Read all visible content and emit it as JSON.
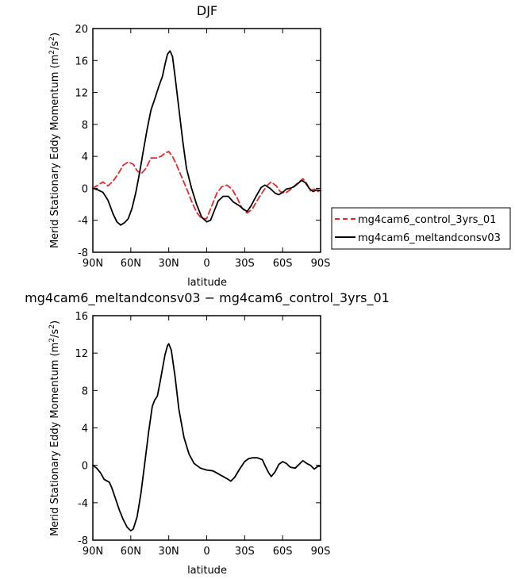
{
  "chart_data": [
    {
      "type": "line",
      "title": "DJF",
      "xlabel": "latitude",
      "ylabel": "Merid Stationary Eddy Momentum (m²/s²)",
      "ylabel_main": "Merid Stationary Eddy Momentum (m",
      "ylabel_sup": "2",
      "ylabel_mid": "/s",
      "ylabel_sup2": "2",
      "ylabel_end": ")",
      "x_ticks": [
        90,
        60,
        30,
        0,
        -30,
        -60,
        -90
      ],
      "x_tick_labels": [
        "90N",
        "60N",
        "30N",
        "0",
        "30S",
        "60S",
        "90S"
      ],
      "xlim": [
        90,
        -90
      ],
      "ylim": [
        -8,
        20
      ],
      "y_ticks": [
        -8,
        -4,
        0,
        4,
        8,
        12,
        16,
        20
      ],
      "legend_position": "right",
      "series": [
        {
          "name": "mg4cam6_control_3yrs_01",
          "color": "#e8272a",
          "dash": "dashed",
          "points": [
            [
              90,
              0
            ],
            [
              86,
              0.4
            ],
            [
              82,
              0.8
            ],
            [
              78,
              0.3
            ],
            [
              74,
              0.9
            ],
            [
              70,
              1.8
            ],
            [
              66,
              2.9
            ],
            [
              62,
              3.3
            ],
            [
              58,
              3.0
            ],
            [
              55,
              2.2
            ],
            [
              52,
              1.8
            ],
            [
              48,
              2.5
            ],
            [
              44,
              3.8
            ],
            [
              40,
              3.8
            ],
            [
              36,
              4.0
            ],
            [
              33,
              4.4
            ],
            [
              30,
              4.6
            ],
            [
              27,
              4.0
            ],
            [
              24,
              3.0
            ],
            [
              20,
              1.5
            ],
            [
              16,
              0
            ],
            [
              12,
              -1.6
            ],
            [
              8,
              -3.0
            ],
            [
              4,
              -3.8
            ],
            [
              0,
              -3.8
            ],
            [
              -4,
              -2.2
            ],
            [
              -8,
              -0.6
            ],
            [
              -12,
              0.2
            ],
            [
              -16,
              0.4
            ],
            [
              -20,
              -0.1
            ],
            [
              -24,
              -1.2
            ],
            [
              -28,
              -2.5
            ],
            [
              -32,
              -3.1
            ],
            [
              -36,
              -2.6
            ],
            [
              -40,
              -1.5
            ],
            [
              -44,
              -0.5
            ],
            [
              -48,
              0.4
            ],
            [
              -51,
              0.8
            ],
            [
              -55,
              0.3
            ],
            [
              -58,
              -0.4
            ],
            [
              -62,
              -0.6
            ],
            [
              -66,
              -0.2
            ],
            [
              -70,
              0.4
            ],
            [
              -73,
              0.8
            ],
            [
              -76,
              1.2
            ],
            [
              -79,
              0.6
            ],
            [
              -82,
              -0.3
            ],
            [
              -85,
              -0.1
            ],
            [
              -88,
              -0.4
            ],
            [
              -90,
              -0.2
            ]
          ]
        },
        {
          "name": "mg4cam6_meltandconsv03",
          "color": "#000000",
          "dash": "solid",
          "points": [
            [
              90,
              0
            ],
            [
              86,
              -0.2
            ],
            [
              82,
              -0.5
            ],
            [
              78,
              -1.5
            ],
            [
              74,
              -3.2
            ],
            [
              71,
              -4.2
            ],
            [
              68,
              -4.6
            ],
            [
              65,
              -4.3
            ],
            [
              62,
              -3.8
            ],
            [
              59,
              -2.5
            ],
            [
              56,
              -0.5
            ],
            [
              53,
              2.0
            ],
            [
              50,
              4.8
            ],
            [
              47,
              7.5
            ],
            [
              44,
              9.8
            ],
            [
              41,
              11.2
            ],
            [
              38,
              12.7
            ],
            [
              35,
              14.0
            ],
            [
              33,
              15.5
            ],
            [
              31,
              16.8
            ],
            [
              29,
              17.2
            ],
            [
              27,
              16.5
            ],
            [
              25,
              14.0
            ],
            [
              22,
              10.0
            ],
            [
              19,
              6.0
            ],
            [
              16,
              2.5
            ],
            [
              12,
              0
            ],
            [
              8,
              -2.0
            ],
            [
              4,
              -3.6
            ],
            [
              0,
              -4.2
            ],
            [
              -3,
              -4.0
            ],
            [
              -6,
              -2.8
            ],
            [
              -9,
              -1.6
            ],
            [
              -13,
              -1.0
            ],
            [
              -17,
              -1.0
            ],
            [
              -21,
              -1.7
            ],
            [
              -25,
              -2.1
            ],
            [
              -29,
              -2.6
            ],
            [
              -32,
              -2.9
            ],
            [
              -35,
              -2.2
            ],
            [
              -39,
              -1.0
            ],
            [
              -43,
              0.1
            ],
            [
              -46,
              0.4
            ],
            [
              -50,
              0
            ],
            [
              -54,
              -0.6
            ],
            [
              -57,
              -0.8
            ],
            [
              -60,
              -0.5
            ],
            [
              -63,
              -0.1
            ],
            [
              -66,
              0
            ],
            [
              -69,
              0.2
            ],
            [
              -72,
              0.6
            ],
            [
              -75,
              1.0
            ],
            [
              -78,
              0.7
            ],
            [
              -81,
              0
            ],
            [
              -84,
              -0.4
            ],
            [
              -87,
              -0.2
            ],
            [
              -90,
              -0.3
            ]
          ]
        }
      ]
    },
    {
      "type": "line",
      "title": "mg4cam6_meltandconsv03 − mg4cam6_control_3yrs_01",
      "xlabel": "latitude",
      "ylabel": "Merid Stationary Eddy Momentum (m²/s²)",
      "ylabel_main": "Merid Stationary Eddy Momentum (m",
      "ylabel_sup": "2",
      "ylabel_mid": "/s",
      "ylabel_sup2": "2",
      "ylabel_end": ")",
      "x_ticks": [
        90,
        60,
        30,
        0,
        -30,
        -60,
        -90
      ],
      "x_tick_labels": [
        "90N",
        "60N",
        "30N",
        "0",
        "30S",
        "60S",
        "90S"
      ],
      "xlim": [
        90,
        -90
      ],
      "ylim": [
        -8,
        16
      ],
      "y_ticks": [
        -8,
        -4,
        0,
        4,
        8,
        12,
        16
      ],
      "series": [
        {
          "color": "#000000",
          "dash": "solid",
          "points": [
            [
              90,
              0
            ],
            [
              87,
              -0.3
            ],
            [
              84,
              -0.8
            ],
            [
              81,
              -1.5
            ],
            [
              77,
              -1.8
            ],
            [
              75,
              -2.4
            ],
            [
              72,
              -3.6
            ],
            [
              69,
              -4.8
            ],
            [
              66,
              -5.8
            ],
            [
              63,
              -6.6
            ],
            [
              60,
              -7.0
            ],
            [
              58,
              -6.8
            ],
            [
              55,
              -5.5
            ],
            [
              52,
              -3.0
            ],
            [
              49,
              0.2
            ],
            [
              46,
              3.5
            ],
            [
              43,
              6.3
            ],
            [
              41,
              7.0
            ],
            [
              39,
              7.4
            ],
            [
              37,
              8.8
            ],
            [
              35,
              10.3
            ],
            [
              33,
              11.8
            ],
            [
              31,
              12.8
            ],
            [
              30,
              13.0
            ],
            [
              28,
              12.3
            ],
            [
              25,
              9.5
            ],
            [
              22,
              6.0
            ],
            [
              18,
              3.0
            ],
            [
              14,
              1.2
            ],
            [
              10,
              0.2
            ],
            [
              5,
              -0.3
            ],
            [
              0,
              -0.5
            ],
            [
              -5,
              -0.6
            ],
            [
              -9,
              -0.9
            ],
            [
              -13,
              -1.2
            ],
            [
              -17,
              -1.5
            ],
            [
              -19,
              -1.7
            ],
            [
              -22,
              -1.3
            ],
            [
              -26,
              -0.4
            ],
            [
              -30,
              0.4
            ],
            [
              -33,
              0.7
            ],
            [
              -36,
              0.8
            ],
            [
              -40,
              0.8
            ],
            [
              -44,
              0.6
            ],
            [
              -46,
              0
            ],
            [
              -49,
              -0.8
            ],
            [
              -51,
              -1.2
            ],
            [
              -54,
              -0.7
            ],
            [
              -57,
              0.1
            ],
            [
              -60,
              0.4
            ],
            [
              -63,
              0.2
            ],
            [
              -66,
              -0.2
            ],
            [
              -70,
              -0.3
            ],
            [
              -73,
              0.1
            ],
            [
              -76,
              0.5
            ],
            [
              -79,
              0.2
            ],
            [
              -82,
              0
            ],
            [
              -85,
              -0.4
            ],
            [
              -88,
              -0.1
            ],
            [
              -90,
              -0.1
            ]
          ]
        }
      ]
    }
  ]
}
